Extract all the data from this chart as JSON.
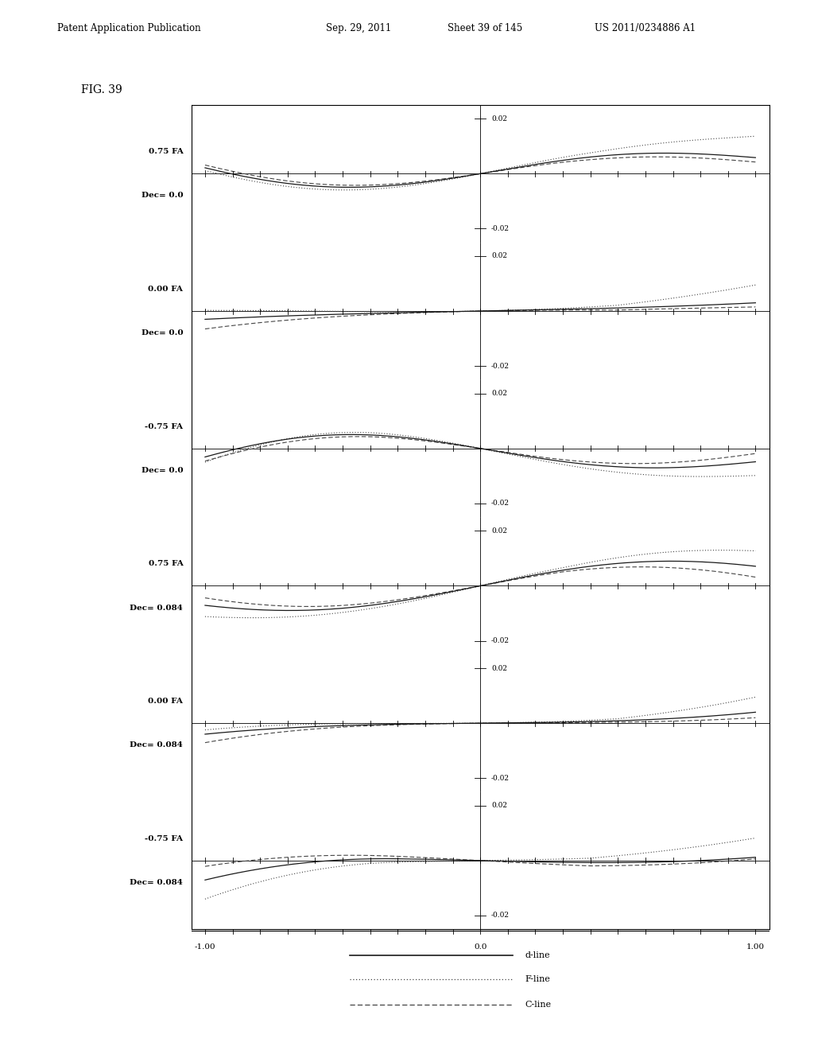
{
  "title": "FIG. 39",
  "subplots": [
    {
      "label_fa": "0.75 FA",
      "label_dec": "Dec= 0.0"
    },
    {
      "label_fa": "0.00 FA",
      "label_dec": "Dec= 0.0"
    },
    {
      "label_fa": "-0.75 FA",
      "label_dec": "Dec= 0.0"
    },
    {
      "label_fa": "0.75 FA",
      "label_dec": "Dec= 0.084"
    },
    {
      "label_fa": "0.00 FA",
      "label_dec": "Dec= 0.084"
    },
    {
      "label_fa": "-0.75 FA",
      "label_dec": "Dec= 0.084"
    }
  ],
  "ylim": [
    -0.025,
    0.025
  ],
  "xlim": [
    -1.05,
    1.05
  ],
  "legend_entries": [
    "d-line",
    "F-line",
    "C-line"
  ],
  "line_colors": [
    "#1a1a1a",
    "#444444",
    "#444444"
  ],
  "background_color": "#ffffff"
}
